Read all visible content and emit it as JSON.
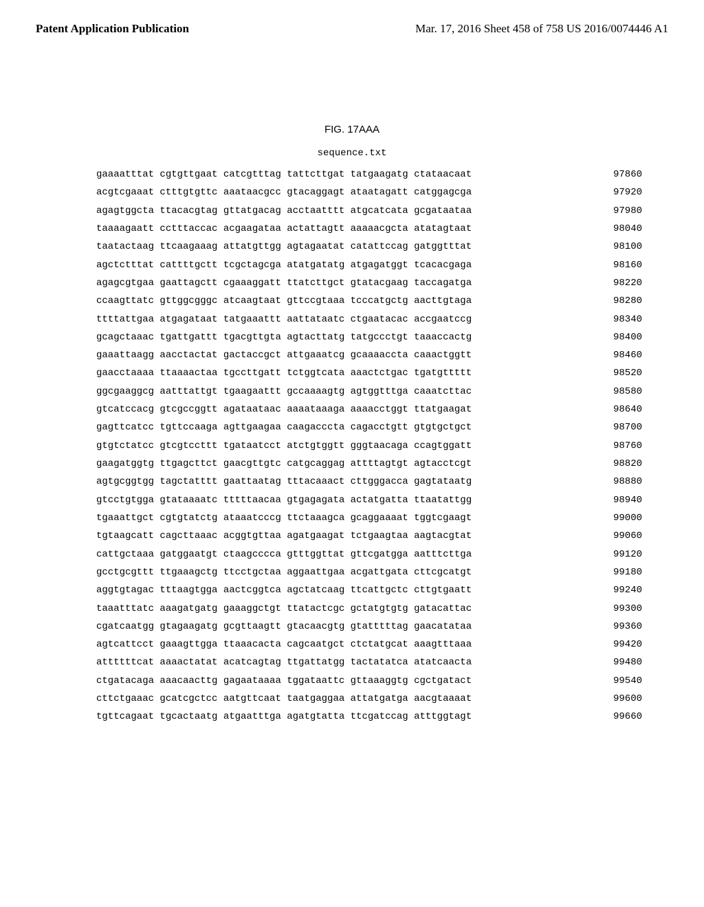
{
  "header": {
    "left": "Patent Application Publication",
    "right": "Mar. 17, 2016  Sheet 458 of 758   US 2016/0074446 A1"
  },
  "figure": {
    "title": "FIG. 17AAA",
    "label": "sequence.txt"
  },
  "sequence": {
    "font_family": "Courier New",
    "font_size_pt": 10,
    "text_color": "#000000",
    "background_color": "#ffffff",
    "rows": [
      {
        "groups": [
          "gaaaatttat",
          "cgtgttgaat",
          "catcgtttag",
          "tattcttgat",
          "tatgaagatg",
          "ctataacaat"
        ],
        "pos": "97860"
      },
      {
        "groups": [
          "acgtcgaaat",
          "ctttgtgttc",
          "aaataacgcc",
          "gtacaggagt",
          "ataatagatt",
          "catggagcga"
        ],
        "pos": "97920"
      },
      {
        "groups": [
          "agagtggcta",
          "ttacacgtag",
          "gttatgacag",
          "acctaatttt",
          "atgcatcata",
          "gcgataataa"
        ],
        "pos": "97980"
      },
      {
        "groups": [
          "taaaagaatt",
          "cctttaccac",
          "acgaagataa",
          "actattagtt",
          "aaaaacgcta",
          "atatagtaat"
        ],
        "pos": "98040"
      },
      {
        "groups": [
          "taatactaag",
          "ttcaagaaag",
          "attatgttgg",
          "agtagaatat",
          "catattccag",
          "gatggtttat"
        ],
        "pos": "98100"
      },
      {
        "groups": [
          "agctctttat",
          "cattttgctt",
          "tcgctagcga",
          "atatgatatg",
          "atgagatggt",
          "tcacacgaga"
        ],
        "pos": "98160"
      },
      {
        "groups": [
          "agagcgtgaa",
          "gaattagctt",
          "cgaaaggatt",
          "ttatcttgct",
          "gtatacgaag",
          "taccagatga"
        ],
        "pos": "98220"
      },
      {
        "groups": [
          "ccaagttatc",
          "gttggcgggc",
          "atcaagtaat",
          "gttccgtaaa",
          "tcccatgctg",
          "aacttgtaga"
        ],
        "pos": "98280"
      },
      {
        "groups": [
          "ttttattgaa",
          "atgagataat",
          "tatgaaattt",
          "aattataatc",
          "ctgaatacac",
          "accgaatccg"
        ],
        "pos": "98340"
      },
      {
        "groups": [
          "gcagctaaac",
          "tgattgattt",
          "tgacgttgta",
          "agtacttatg",
          "tatgccctgt",
          "taaaccactg"
        ],
        "pos": "98400"
      },
      {
        "groups": [
          "gaaattaagg",
          "aacctactat",
          "gactaccgct",
          "attgaaatcg",
          "gcaaaaccta",
          "caaactggtt"
        ],
        "pos": "98460"
      },
      {
        "groups": [
          "gaacctaaaa",
          "ttaaaactaa",
          "tgccttgatt",
          "tctggtcata",
          "aaactctgac",
          "tgatgttttt"
        ],
        "pos": "98520"
      },
      {
        "groups": [
          "ggcgaaggcg",
          "aatttattgt",
          "tgaagaattt",
          "gccaaaagtg",
          "agtggtttga",
          "caaatcttac"
        ],
        "pos": "98580"
      },
      {
        "groups": [
          "gtcatccacg",
          "gtcgccggtt",
          "agataataac",
          "aaaataaaga",
          "aaaacctggt",
          "ttatgaagat"
        ],
        "pos": "98640"
      },
      {
        "groups": [
          "gagttcatcc",
          "tgttccaaga",
          "agttgaagaa",
          "caagacccta",
          "cagacctgtt",
          "gtgtgctgct"
        ],
        "pos": "98700"
      },
      {
        "groups": [
          "gtgtctatcc",
          "gtcgtccttt",
          "tgataatcct",
          "atctgtggtt",
          "gggtaacaga",
          "ccagtggatt"
        ],
        "pos": "98760"
      },
      {
        "groups": [
          "gaagatggtg",
          "ttgagcttct",
          "gaacgttgtc",
          "catgcaggag",
          "attttagtgt",
          "agtacctcgt"
        ],
        "pos": "98820"
      },
      {
        "groups": [
          "agtgcggtgg",
          "tagctatttt",
          "gaattaatag",
          "tttacaaact",
          "cttgggacca",
          "gagtataatg"
        ],
        "pos": "98880"
      },
      {
        "groups": [
          "gtcctgtgga",
          "gtataaaatc",
          "tttttaacaa",
          "gtgagagata",
          "actatgatta",
          "ttaatattgg"
        ],
        "pos": "98940"
      },
      {
        "groups": [
          "tgaaattgct",
          "cgtgtatctg",
          "ataaatcccg",
          "ttctaaagca",
          "gcaggaaaat",
          "tggtcgaagt"
        ],
        "pos": "99000"
      },
      {
        "groups": [
          "tgtaagcatt",
          "cagcttaaac",
          "acggtgttaa",
          "agatgaagat",
          "tctgaagtaa",
          "aagtacgtat"
        ],
        "pos": "99060"
      },
      {
        "groups": [
          "cattgctaaa",
          "gatggaatgt",
          "ctaagcccca",
          "gtttggttat",
          "gttcgatgga",
          "aatttcttga"
        ],
        "pos": "99120"
      },
      {
        "groups": [
          "gcctgcgttt",
          "ttgaaagctg",
          "ttcctgctaa",
          "aggaattgaa",
          "acgattgata",
          "cttcgcatgt"
        ],
        "pos": "99180"
      },
      {
        "groups": [
          "aggtgtagac",
          "tttaagtgga",
          "aactcggtca",
          "agctatcaag",
          "ttcattgctc",
          "cttgtgaatt"
        ],
        "pos": "99240"
      },
      {
        "groups": [
          "taaatttatc",
          "aaagatgatg",
          "gaaaggctgt",
          "ttatactcgc",
          "gctatgtgtg",
          "gatacattac"
        ],
        "pos": "99300"
      },
      {
        "groups": [
          "cgatcaatgg",
          "gtagaagatg",
          "gcgttaagtt",
          "gtacaacgtg",
          "gtatttttag",
          "gaacatataa"
        ],
        "pos": "99360"
      },
      {
        "groups": [
          "agtcattcct",
          "gaaagttgga",
          "ttaaacacta",
          "cagcaatgct",
          "ctctatgcat",
          "aaagtttaaa"
        ],
        "pos": "99420"
      },
      {
        "groups": [
          "attttttcat",
          "aaaactatat",
          "acatcagtag",
          "ttgattatgg",
          "tactatatca",
          "atatcaacta"
        ],
        "pos": "99480"
      },
      {
        "groups": [
          "ctgatacaga",
          "aaacaacttg",
          "gagaataaaa",
          "tggataattc",
          "gttaaaggtg",
          "cgctgatact"
        ],
        "pos": "99540"
      },
      {
        "groups": [
          "cttctgaaac",
          "gcatcgctcc",
          "aatgttcaat",
          "taatgaggaa",
          "attatgatga",
          "aacgtaaaat"
        ],
        "pos": "99600"
      },
      {
        "groups": [
          "tgttcagaat",
          "tgcactaatg",
          "atgaatttga",
          "agatgtatta",
          "ttcgatccag",
          "atttggtagt"
        ],
        "pos": "99660"
      }
    ]
  }
}
